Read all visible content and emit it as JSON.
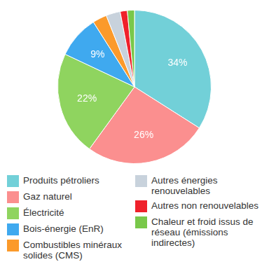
{
  "chart_data": {
    "type": "pie",
    "categories": [
      "Produits pétroliers",
      "Gaz naturel",
      "Électricité",
      "Bois-énergie (EnR)",
      "Combustibles minéraux solides (CMS)",
      "Autres énergies renouvelables",
      "Autres non renouvelables",
      "Chaleur et froid issus de réseau (émissions indirectes)"
    ],
    "values": [
      34,
      26,
      22,
      9,
      3,
      3,
      1.5,
      1.5
    ],
    "colors": [
      "#72d0d8",
      "#fb8f8f",
      "#8fd45f",
      "#3fa9ef",
      "#fb9a2b",
      "#c8d2dc",
      "#ef212b",
      "#79c84a"
    ],
    "data_labels": true,
    "value_labels": [
      "34%",
      "26%",
      "22%",
      "9%",
      null,
      null,
      null,
      null
    ],
    "legend": "bottom"
  }
}
